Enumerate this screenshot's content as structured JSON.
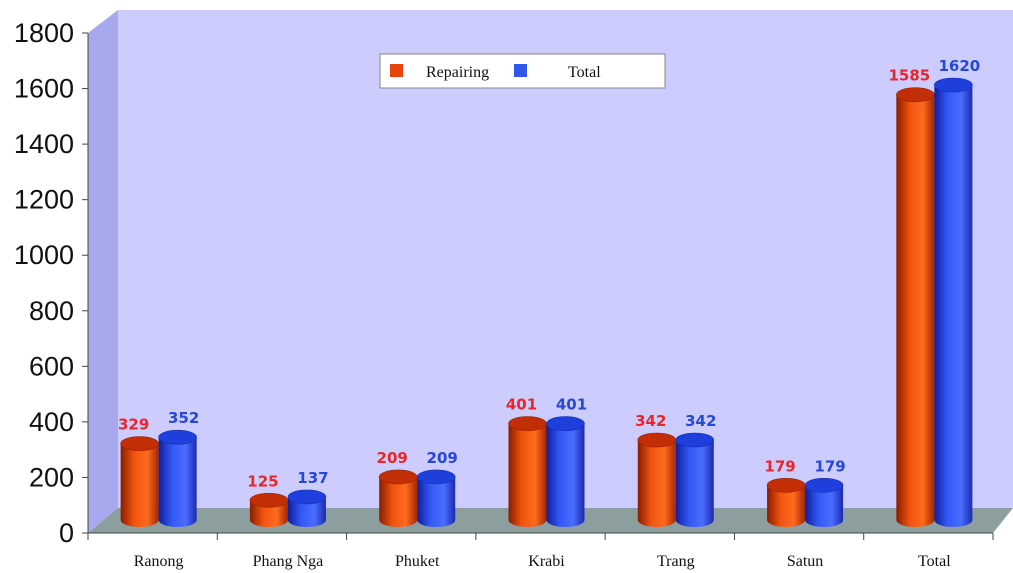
{
  "chart_data": {
    "type": "bar",
    "categories": [
      "Ranong",
      "Phang Nga",
      "Phuket",
      "Krabi",
      "Trang",
      "Satun",
      "Total"
    ],
    "series": [
      {
        "name": "Repairing",
        "values": [
          329,
          125,
          209,
          401,
          342,
          179,
          1585
        ],
        "color": "#e8440e",
        "label_color": "#e8262a"
      },
      {
        "name": "Total",
        "values": [
          352,
          137,
          209,
          401,
          342,
          179,
          1620
        ],
        "color": "#2f57ee",
        "label_color": "#2747d6"
      }
    ],
    "title": "",
    "xlabel": "",
    "ylabel": "",
    "ylim": [
      0,
      1800
    ],
    "yticks": [
      0,
      200,
      400,
      600,
      800,
      1000,
      1200,
      1400,
      1600,
      1800
    ],
    "legend": "top-center",
    "grid": false,
    "style": "3d-cylinder",
    "colors": {
      "wall": "#ccccff",
      "floor": "#8c9e9e"
    }
  }
}
